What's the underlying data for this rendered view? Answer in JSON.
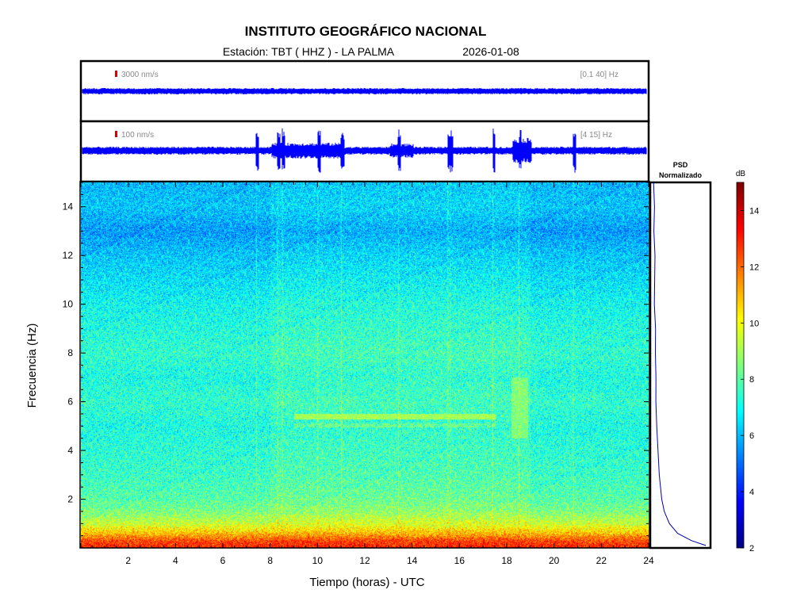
{
  "header": {
    "title": "INSTITUTO GEOGRÁFICO NACIONAL",
    "station_label": "Estación:  TBT ( HHZ ) - LA PALMA",
    "date": "2026-01-08"
  },
  "trace_top": {
    "scale_label": "3000 nm/s",
    "band_label": "[0.1 40] Hz"
  },
  "trace_bottom": {
    "scale_label": "100 nm/s",
    "band_label": "[4 15] Hz"
  },
  "psd": {
    "title_line1": "PSD",
    "title_line2": "Normalizado"
  },
  "colorbar": {
    "label": "dB",
    "ticks": [
      "2",
      "4",
      "6",
      "8",
      "10",
      "12",
      "14"
    ]
  },
  "colors": {
    "trace": "#0000ff",
    "frame": "#000000",
    "scale_marker": "#dd0000",
    "psd_line": "#0000aa"
  },
  "chart_data": {
    "type": "heatmap",
    "xlabel": "Tiempo (horas) - UTC",
    "ylabel": "Frecuencia  (Hz)",
    "xlim": [
      0,
      24
    ],
    "ylim": [
      0,
      15
    ],
    "x_ticks": [
      "2",
      "4",
      "6",
      "8",
      "10",
      "12",
      "14",
      "16",
      "18",
      "20",
      "22",
      "24"
    ],
    "y_ticks": [
      "2",
      "4",
      "6",
      "8",
      "10",
      "12",
      "14"
    ],
    "color_scale_db": [
      2,
      15
    ],
    "colormap": "jet",
    "noise_profile_db": [
      [
        0,
        13
      ],
      [
        0.3,
        12.5
      ],
      [
        0.6,
        11
      ],
      [
        1,
        9.5
      ],
      [
        1.5,
        8.5
      ],
      [
        2,
        8
      ],
      [
        3,
        7.6
      ],
      [
        5,
        7.2
      ],
      [
        6,
        7.5
      ],
      [
        7,
        7.2
      ],
      [
        8,
        7.5
      ],
      [
        10,
        7
      ],
      [
        12,
        6.2
      ],
      [
        13,
        5.6
      ],
      [
        14,
        6.2
      ],
      [
        15,
        6
      ]
    ],
    "tremor_band": {
      "t_start": 9,
      "t_end": 17.5,
      "f_hz": 5.4,
      "level_db": 9
    },
    "transient_events_h": [
      7.4,
      8.3,
      8.5,
      10.0,
      11.0,
      13.4,
      15.5,
      15.6,
      17.4,
      18.5,
      20.8
    ],
    "burst_event": {
      "t_start": 18.2,
      "t_end": 18.9,
      "f_low": 4.5,
      "f_high": 7,
      "level_db": 9
    },
    "psd_normalized": [
      [
        0.1,
        0.95
      ],
      [
        0.3,
        0.7
      ],
      [
        0.6,
        0.45
      ],
      [
        1,
        0.3
      ],
      [
        1.5,
        0.22
      ],
      [
        2,
        0.18
      ],
      [
        3,
        0.13
      ],
      [
        4,
        0.1
      ],
      [
        5,
        0.09
      ],
      [
        6,
        0.08
      ],
      [
        7,
        0.07
      ],
      [
        8,
        0.06
      ],
      [
        9,
        0.06
      ],
      [
        10,
        0.05
      ],
      [
        11,
        0.05
      ],
      [
        12,
        0.045
      ],
      [
        13,
        0.04
      ],
      [
        14,
        0.04
      ],
      [
        15,
        0.04
      ]
    ]
  }
}
